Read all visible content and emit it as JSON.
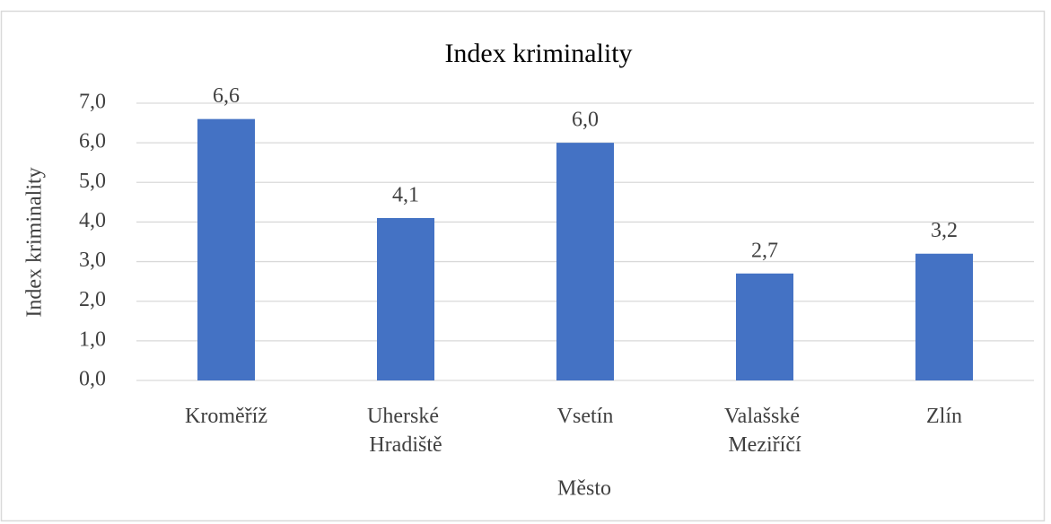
{
  "chart_data": {
    "type": "bar",
    "title": "Index kriminality",
    "categories": [
      "Kroměříž",
      "Uherské Hradiště",
      "Vsetín",
      "Valašské Meziříčí",
      "Zlín"
    ],
    "values": [
      6.6,
      4.1,
      6.0,
      2.7,
      3.2
    ],
    "value_labels": [
      "6,6",
      "4,1",
      "6,0",
      "2,7",
      "3,2"
    ],
    "color": "#4472c4",
    "x_label": "Město",
    "y_label": "Index kriminality",
    "ylim": [
      0,
      7
    ],
    "yticks": [
      {
        "value": 0,
        "label": "0,0"
      },
      {
        "value": 1,
        "label": "1,0"
      },
      {
        "value": 2,
        "label": "2,0"
      },
      {
        "value": 3,
        "label": "3,0"
      },
      {
        "value": 4,
        "label": "4,0"
      },
      {
        "value": 5,
        "label": "5,0"
      },
      {
        "value": 6,
        "label": "6,0"
      },
      {
        "value": 7,
        "label": "7,0"
      }
    ],
    "grid": true
  }
}
